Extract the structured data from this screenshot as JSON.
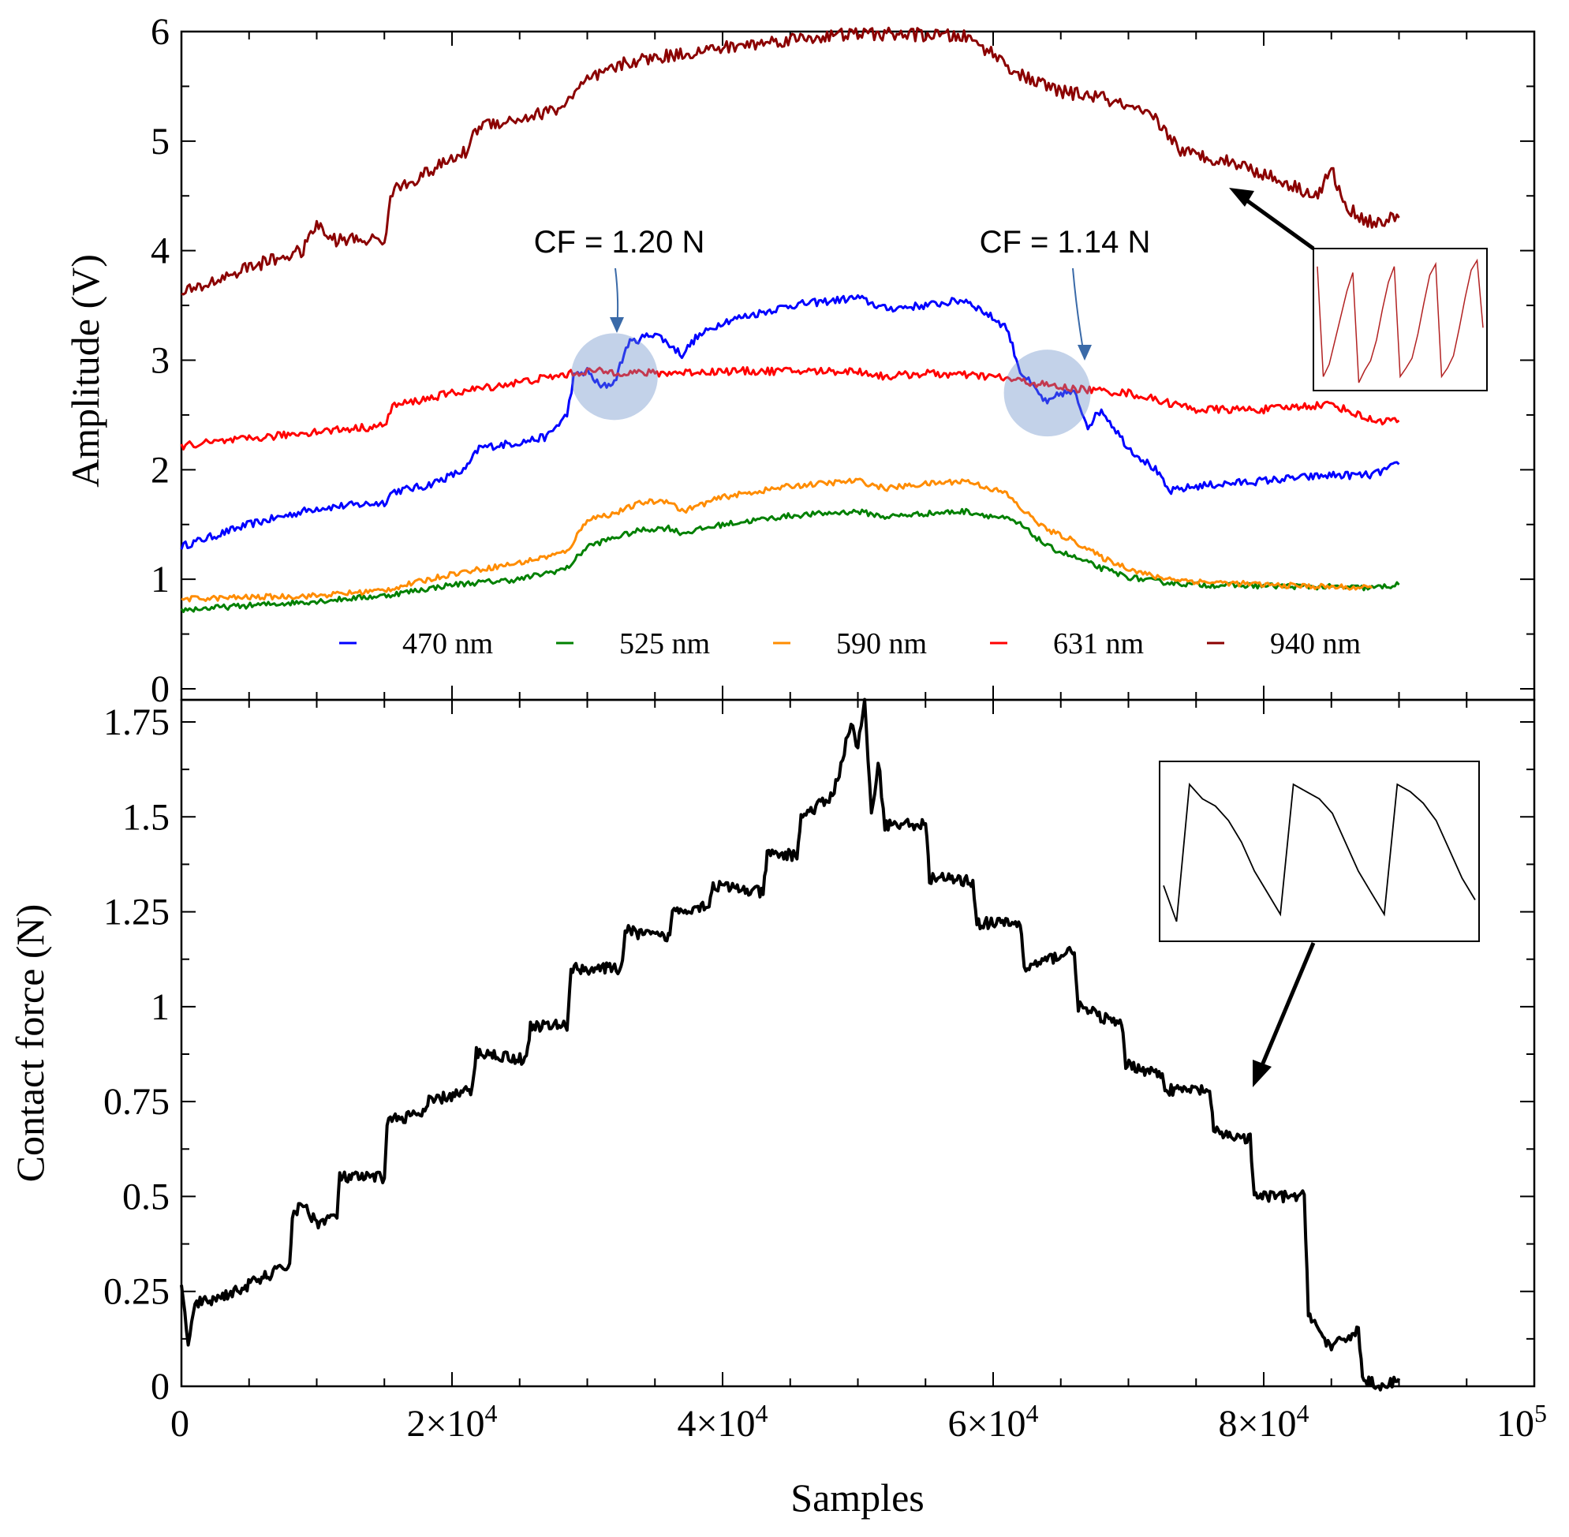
{
  "chart_data": [
    {
      "type": "line",
      "panel": "top",
      "ylabel": "Amplitude (V)",
      "ylim": [
        0,
        6
      ],
      "yticks": [
        {
          "value": 0,
          "label": "0"
        },
        {
          "value": 1,
          "label": "1"
        },
        {
          "value": 2,
          "label": "2"
        },
        {
          "value": 3,
          "label": "3"
        },
        {
          "value": 4,
          "label": "4"
        },
        {
          "value": 5,
          "label": "5"
        },
        {
          "value": 6,
          "label": "6"
        }
      ],
      "legend_position": "bottom",
      "series": [
        {
          "name": "470 nm",
          "color": "#0000ff",
          "x": [
            0,
            5000,
            10000,
            15000,
            15600,
            18000,
            21000,
            22000,
            25000,
            27000,
            28500,
            29000,
            30000,
            31000,
            32000,
            33000,
            35000,
            37000,
            38000,
            40000,
            45000,
            50000,
            52000,
            55000,
            58000,
            61000,
            62000,
            64000,
            65000,
            66000,
            67000,
            68000,
            70000,
            72000,
            73000,
            75000,
            80000,
            85000,
            88000,
            90000
          ],
          "y": [
            1.3,
            1.5,
            1.65,
            1.7,
            1.8,
            1.85,
            2.0,
            2.2,
            2.25,
            2.3,
            2.5,
            2.85,
            2.9,
            2.75,
            2.8,
            3.15,
            3.25,
            3.05,
            3.2,
            3.35,
            3.5,
            3.57,
            3.47,
            3.5,
            3.55,
            3.3,
            2.9,
            2.6,
            2.7,
            2.7,
            2.4,
            2.55,
            2.2,
            2.0,
            1.8,
            1.85,
            1.9,
            1.95,
            1.95,
            2.05
          ]
        },
        {
          "name": "525 nm",
          "color": "#008000",
          "x": [
            0,
            10000,
            15000,
            20000,
            25000,
            28500,
            30000,
            32000,
            34000,
            36000,
            37000,
            40000,
            45000,
            50000,
            52000,
            55000,
            58000,
            61000,
            62000,
            64000,
            66000,
            68000,
            70000,
            72000,
            75000,
            80000,
            85000,
            88000,
            90000
          ],
          "y": [
            0.72,
            0.8,
            0.85,
            0.95,
            1.0,
            1.1,
            1.3,
            1.38,
            1.45,
            1.47,
            1.42,
            1.5,
            1.58,
            1.62,
            1.57,
            1.6,
            1.62,
            1.55,
            1.5,
            1.3,
            1.2,
            1.1,
            1.02,
            0.98,
            0.95,
            0.94,
            0.93,
            0.92,
            0.95
          ]
        },
        {
          "name": "590 nm",
          "color": "#ff8c00",
          "x": [
            0,
            10000,
            15000,
            20000,
            25000,
            28500,
            30000,
            32000,
            34000,
            36000,
            37000,
            40000,
            45000,
            50000,
            52000,
            55000,
            58000,
            61000,
            62000,
            64000,
            66000,
            68000,
            70000,
            72000,
            75000,
            80000,
            85000,
            88000
          ],
          "y": [
            0.82,
            0.85,
            0.9,
            1.05,
            1.15,
            1.25,
            1.55,
            1.6,
            1.7,
            1.72,
            1.62,
            1.75,
            1.85,
            1.9,
            1.83,
            1.87,
            1.9,
            1.78,
            1.65,
            1.45,
            1.35,
            1.2,
            1.1,
            1.02,
            0.98,
            0.95,
            0.93,
            0.92
          ]
        },
        {
          "name": "631 nm",
          "color": "#ff0000",
          "x": [
            0,
            5000,
            10000,
            15000,
            15600,
            20000,
            25000,
            30000,
            35000,
            40000,
            45000,
            50000,
            52000,
            55000,
            60000,
            65000,
            70000,
            75000,
            80000,
            85000,
            88000,
            90000
          ],
          "y": [
            2.22,
            2.28,
            2.35,
            2.4,
            2.58,
            2.7,
            2.8,
            2.9,
            2.88,
            2.9,
            2.9,
            2.9,
            2.85,
            2.88,
            2.85,
            2.75,
            2.7,
            2.55,
            2.55,
            2.6,
            2.45,
            2.45
          ]
        },
        {
          "name": "940 nm",
          "color": "#8b0000",
          "x": [
            0,
            5000,
            9000,
            10000,
            11000,
            15000,
            15600,
            18000,
            21000,
            22000,
            25000,
            28000,
            30000,
            33000,
            36000,
            40000,
            45000,
            50000,
            55000,
            58000,
            60000,
            62000,
            65000,
            68000,
            70000,
            72000,
            74000,
            78000,
            82000,
            84000,
            85000,
            86000,
            88000,
            90000
          ],
          "y": [
            3.6,
            3.85,
            4.0,
            4.25,
            4.1,
            4.1,
            4.55,
            4.7,
            4.9,
            5.15,
            5.2,
            5.3,
            5.55,
            5.72,
            5.78,
            5.85,
            5.93,
            5.98,
            5.97,
            5.95,
            5.8,
            5.6,
            5.45,
            5.4,
            5.3,
            5.2,
            4.9,
            4.8,
            4.6,
            4.5,
            4.75,
            4.4,
            4.25,
            4.3
          ]
        }
      ],
      "annotations": [
        {
          "text": "CF = 1.20 N",
          "x": 32000,
          "y": 2.85
        },
        {
          "text": "CF = 1.14 N",
          "x": 64000,
          "y": 2.7
        }
      ],
      "inset_series": [
        [
          0.95,
          0.05,
          0.15,
          0.35,
          0.55,
          0.75,
          0.9,
          0.0,
          0.1,
          0.18,
          0.35,
          0.6,
          0.82,
          0.95,
          0.05,
          0.12,
          0.2,
          0.4,
          0.65,
          0.88,
          0.97,
          0.05,
          0.12,
          0.22,
          0.45,
          0.7,
          0.92,
          1.0,
          0.45
        ]
      ]
    },
    {
      "type": "line",
      "panel": "bottom",
      "title": "",
      "xlabel": "Samples",
      "ylabel": "Contact force (N)",
      "xlim": [
        0,
        100000
      ],
      "ylim": [
        0,
        1.85
      ],
      "xticks": [
        {
          "value": 0,
          "base": "0",
          "exp": ""
        },
        {
          "value": 20000,
          "base": "2×10",
          "exp": "4"
        },
        {
          "value": 40000,
          "base": "4×10",
          "exp": "4"
        },
        {
          "value": 60000,
          "base": "6×10",
          "exp": "4"
        },
        {
          "value": 80000,
          "base": "8×10",
          "exp": "4"
        },
        {
          "value": 100000,
          "base": "10",
          "exp": "5"
        }
      ],
      "yticks": [
        {
          "value": 0,
          "label": "0"
        },
        {
          "value": 0.25,
          "label": "0.25"
        },
        {
          "value": 0.5,
          "label": "0.5"
        },
        {
          "value": 0.75,
          "label": "0.75"
        },
        {
          "value": 1,
          "label": "1"
        },
        {
          "value": 1.25,
          "label": "1.25"
        },
        {
          "value": 1.5,
          "label": "1.5"
        },
        {
          "value": 1.75,
          "label": "1.75"
        }
      ],
      "series": [
        {
          "name": "Contact force",
          "color": "#000000",
          "x": [
            0,
            500,
            1000,
            1500,
            4000,
            8000,
            8200,
            9000,
            10000,
            11500,
            11700,
            15000,
            15200,
            18000,
            18300,
            21500,
            21800,
            25500,
            25800,
            28500,
            28800,
            32500,
            32800,
            36000,
            36300,
            39000,
            39300,
            43000,
            43300,
            45500,
            45800,
            48000,
            48500,
            49500,
            50000,
            50500,
            51000,
            51500,
            52000,
            55000,
            55300,
            58500,
            58800,
            62000,
            62300,
            66000,
            66300,
            69500,
            69800,
            72500,
            72800,
            76000,
            76300,
            79000,
            79300,
            83000,
            83300,
            84000,
            85000,
            87000,
            87300,
            88000,
            89000,
            90000
          ],
          "y": [
            0.28,
            0.1,
            0.22,
            0.22,
            0.25,
            0.32,
            0.45,
            0.48,
            0.43,
            0.45,
            0.55,
            0.55,
            0.7,
            0.72,
            0.75,
            0.78,
            0.88,
            0.86,
            0.95,
            0.95,
            1.1,
            1.1,
            1.2,
            1.18,
            1.25,
            1.27,
            1.32,
            1.3,
            1.4,
            1.4,
            1.5,
            1.55,
            1.6,
            1.75,
            1.68,
            1.8,
            1.5,
            1.65,
            1.48,
            1.48,
            1.34,
            1.33,
            1.22,
            1.22,
            1.1,
            1.15,
            1.0,
            0.95,
            0.85,
            0.82,
            0.78,
            0.78,
            0.67,
            0.65,
            0.5,
            0.5,
            0.2,
            0.15,
            0.1,
            0.15,
            0.02,
            0.01,
            0.0,
            0.02
          ]
        }
      ],
      "inset_series": [
        [
          0.25,
          0.0,
          0.95,
          0.85,
          0.8,
          0.7,
          0.55,
          0.35,
          0.2,
          0.05,
          0.95,
          0.9,
          0.85,
          0.75,
          0.55,
          0.35,
          0.2,
          0.05,
          0.95,
          0.9,
          0.82,
          0.7,
          0.5,
          0.3,
          0.15
        ]
      ]
    }
  ]
}
